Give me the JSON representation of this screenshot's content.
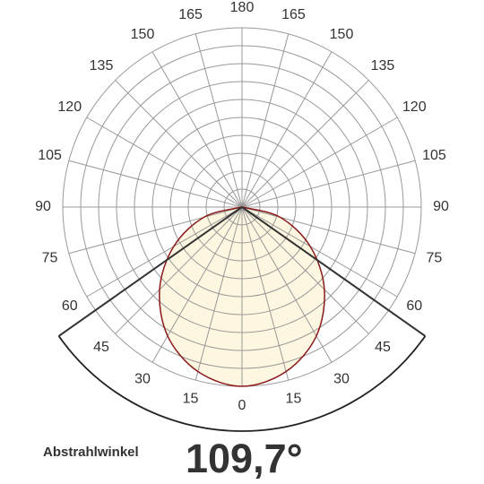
{
  "chart_data": {
    "type": "polar",
    "angle_ticks": [
      0,
      15,
      30,
      45,
      60,
      75,
      90,
      105,
      120,
      135,
      150,
      165,
      180
    ],
    "rlim": [
      0,
      10
    ],
    "rticks": [
      1,
      2,
      3,
      4,
      5,
      6,
      7,
      8,
      9,
      10
    ],
    "curve": {
      "color": "#8b1a1a",
      "fill": "#fdf6e0",
      "angles": [
        -90,
        -75,
        -60,
        -45,
        -30,
        -15,
        0,
        15,
        30,
        45,
        60,
        75,
        90
      ],
      "values": [
        0,
        2.2,
        4.4,
        6.5,
        8.3,
        9.5,
        10,
        9.5,
        8.3,
        6.5,
        4.4,
        2.2,
        0
      ]
    },
    "beam_angle_label": "Abstrahlwinkel",
    "beam_angle": {
      "value": 109.7,
      "label": "109,7°"
    }
  }
}
